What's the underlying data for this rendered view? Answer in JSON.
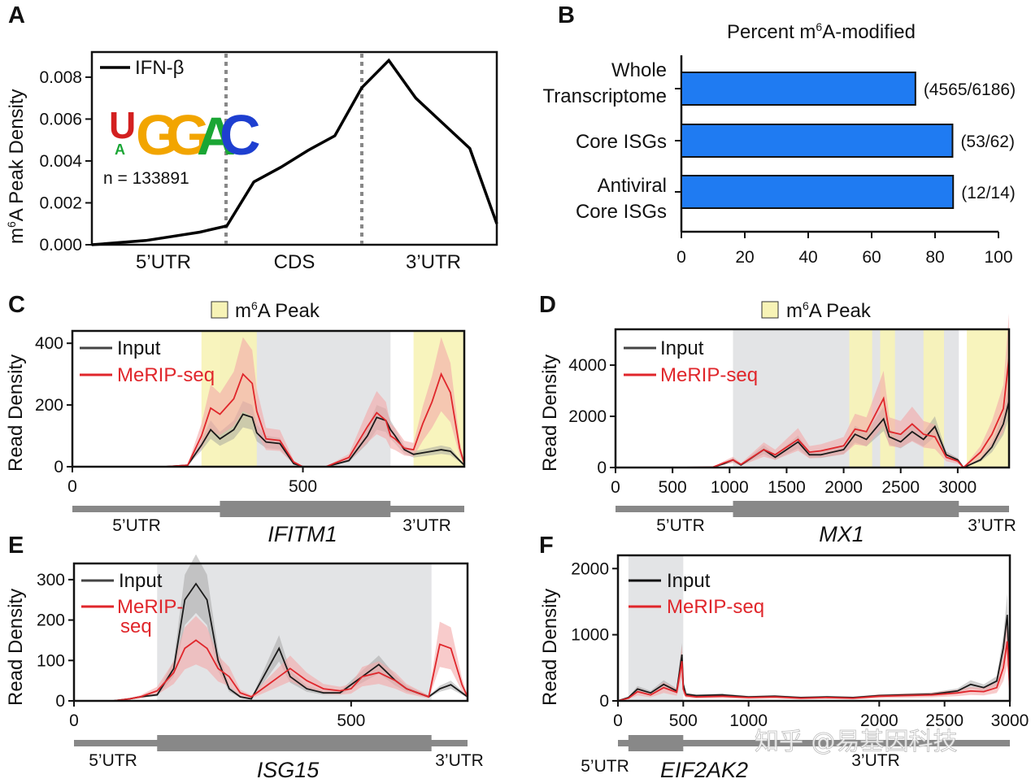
{
  "panels": {
    "A": "A",
    "B": "B",
    "C": "C",
    "D": "D",
    "E": "E",
    "F": "F"
  },
  "colors": {
    "input": "#1a1a1a",
    "merip": "#e0262b",
    "merip_band": "#f4a8a8",
    "input_band": "#9a9a9a",
    "cds_shade": "#e3e4e6",
    "peak_shade": "#f7f3b6",
    "bar": "#1f7bf2",
    "gene_track": "#888888"
  },
  "watermark": "知乎 @易基因科技",
  "chart_data": [
    {
      "panel": "A",
      "type": "line",
      "ylabel_main": "A Peak Density",
      "ylabel_prefix": "m",
      "ylabel_sup": "6",
      "legend": "IFN-β",
      "motif": [
        "U",
        "G",
        "G",
        "A",
        "C"
      ],
      "motif_sub": "A",
      "n_label": "n = 133891",
      "regions": [
        "5’UTR",
        "CDS",
        "3’UTR"
      ],
      "yticks": [
        "0.000",
        "0.002",
        "0.004",
        "0.006",
        "0.008"
      ],
      "ylim": [
        0,
        0.0092
      ],
      "x": [
        0,
        0.2,
        0.4,
        0.6,
        0.8,
        1.0,
        1.2,
        1.4,
        1.6,
        1.8,
        2.0,
        2.2,
        2.4,
        2.6,
        2.8,
        3.0
      ],
      "y": [
        0.0,
        0.0001,
        0.0002,
        0.0004,
        0.0006,
        0.0009,
        0.003,
        0.0037,
        0.0045,
        0.0052,
        0.0075,
        0.0088,
        0.007,
        0.0058,
        0.0046,
        0.001
      ]
    },
    {
      "panel": "B",
      "type": "bar",
      "title_prefix": "Percent m",
      "title_sup": "6",
      "title_suffix": "A-modified",
      "categories": [
        [
          "Whole",
          "Transcriptome"
        ],
        [
          "Core ISGs"
        ],
        [
          "Antiviral",
          "Core ISGs"
        ]
      ],
      "values": [
        73.8,
        85.5,
        85.7
      ],
      "annotations": [
        "(4565/6186)",
        "(53/62)",
        "(12/14)"
      ],
      "xticks": [
        "0",
        "20",
        "40",
        "60",
        "80",
        "100"
      ],
      "xlim": [
        0,
        100
      ]
    },
    {
      "panel": "C",
      "type": "line",
      "gene": "IFITM1",
      "ylabel": "Read Density",
      "utr5": "5’UTR",
      "utr3": "3’UTR",
      "legend_input": "Input",
      "legend_merip": "MeRIP-seq",
      "peak_legend_prefix": "m",
      "peak_legend_sup": "6",
      "peak_legend_suffix": "A Peak",
      "xticks": [
        "0",
        "500"
      ],
      "yticks": [
        "0",
        "200",
        "400"
      ],
      "xlim": [
        0,
        850
      ],
      "ylim": [
        0,
        440
      ],
      "cds": [
        320,
        690
      ],
      "peaks": [
        [
          280,
          400
        ],
        [
          740,
          850
        ]
      ],
      "x": [
        0,
        50,
        100,
        150,
        200,
        250,
        280,
        300,
        320,
        350,
        370,
        390,
        400,
        420,
        450,
        480,
        500,
        550,
        600,
        640,
        660,
        680,
        690,
        700,
        720,
        740,
        760,
        780,
        800,
        820,
        840,
        850
      ],
      "input": [
        0,
        0,
        0,
        0,
        0,
        5,
        70,
        120,
        90,
        120,
        170,
        160,
        110,
        80,
        75,
        10,
        0,
        0,
        20,
        100,
        160,
        150,
        120,
        100,
        55,
        40,
        45,
        50,
        55,
        50,
        20,
        5
      ],
      "merip": [
        0,
        0,
        0,
        0,
        0,
        5,
        100,
        190,
        170,
        220,
        300,
        270,
        180,
        90,
        85,
        15,
        0,
        0,
        30,
        130,
        175,
        150,
        100,
        90,
        60,
        55,
        140,
        210,
        300,
        240,
        60,
        10
      ]
    },
    {
      "panel": "D",
      "type": "line",
      "gene": "MX1",
      "ylabel": "Read Density",
      "utr5": "5’UTR",
      "utr3": "3’UTR",
      "legend_input": "Input",
      "legend_merip": "MeRIP-seq",
      "peak_legend_prefix": "m",
      "peak_legend_sup": "6",
      "peak_legend_suffix": "A Peak",
      "xticks": [
        "0",
        "500",
        "1000",
        "1500",
        "2000",
        "2500",
        "3000"
      ],
      "yticks": [
        "0",
        "2000",
        "4000"
      ],
      "xlim": [
        0,
        3450
      ],
      "ylim": [
        0,
        5400
      ],
      "cds": [
        1030,
        3010
      ],
      "peaks": [
        [
          2050,
          2250
        ],
        [
          2320,
          2450
        ],
        [
          2700,
          2880
        ],
        [
          3080,
          3450
        ]
      ],
      "x": [
        0,
        500,
        850,
        950,
        1030,
        1100,
        1300,
        1400,
        1600,
        1700,
        1800,
        2000,
        2100,
        2200,
        2350,
        2400,
        2500,
        2600,
        2700,
        2800,
        2900,
        3000,
        3050,
        3100,
        3200,
        3300,
        3400,
        3450
      ],
      "input": [
        0,
        0,
        10,
        150,
        300,
        100,
        700,
        400,
        1000,
        500,
        500,
        700,
        1300,
        1100,
        1900,
        1200,
        1000,
        1400,
        1100,
        1600,
        500,
        300,
        0,
        100,
        300,
        800,
        1700,
        2600
      ],
      "merip": [
        0,
        0,
        10,
        180,
        300,
        120,
        700,
        500,
        1100,
        600,
        650,
        850,
        1500,
        1400,
        2700,
        1400,
        1300,
        1700,
        1300,
        1200,
        400,
        250,
        0,
        200,
        600,
        1300,
        2300,
        4300
      ]
    },
    {
      "panel": "E",
      "type": "line",
      "gene": "ISG15",
      "ylabel": "Read Density",
      "utr5": "5’UTR",
      "utr3": "3’UTR",
      "legend_input": "Input",
      "legend_merip_1": "MeRIP-",
      "legend_merip_2": "seq",
      "xticks": [
        "0",
        "500"
      ],
      "yticks": [
        "0",
        "100",
        "200",
        "300"
      ],
      "xlim": [
        0,
        710
      ],
      "ylim": [
        0,
        340
      ],
      "cds": [
        150,
        645
      ],
      "x": [
        0,
        70,
        100,
        120,
        150,
        180,
        200,
        220,
        240,
        260,
        280,
        300,
        320,
        350,
        370,
        390,
        420,
        450,
        480,
        500,
        520,
        550,
        580,
        600,
        620,
        640,
        660,
        680,
        700,
        710
      ],
      "input": [
        0,
        0,
        5,
        10,
        15,
        80,
        250,
        290,
        250,
        100,
        30,
        10,
        5,
        80,
        130,
        60,
        30,
        20,
        20,
        40,
        60,
        90,
        50,
        30,
        20,
        10,
        30,
        40,
        20,
        10
      ],
      "merip": [
        0,
        0,
        5,
        10,
        25,
        70,
        130,
        150,
        130,
        80,
        60,
        20,
        10,
        40,
        60,
        80,
        50,
        30,
        25,
        30,
        60,
        70,
        50,
        30,
        20,
        10,
        140,
        130,
        40,
        10
      ]
    },
    {
      "panel": "F",
      "type": "line",
      "gene": "EIF2AK2",
      "ylabel": "Read Density",
      "utr5": "5’UTR",
      "utr3": "3’UTR",
      "legend_input": "Input",
      "legend_merip": "MeRIP-seq",
      "xticks": [
        "0",
        "500",
        "1000",
        "2000",
        "2500",
        "3000"
      ],
      "xtick_values": [
        0,
        500,
        1000,
        2000,
        2500,
        3000
      ],
      "yticks": [
        "0",
        "1000",
        "2000"
      ],
      "xlim": [
        0,
        3000
      ],
      "ylim": [
        0,
        2200
      ],
      "cds": [
        80,
        500
      ],
      "x": [
        0,
        80,
        150,
        250,
        350,
        450,
        490,
        500,
        520,
        600,
        800,
        1000,
        1200,
        1400,
        1600,
        1800,
        2000,
        2200,
        2400,
        2600,
        2700,
        2800,
        2900,
        2950,
        2980,
        3000
      ],
      "input": [
        0,
        50,
        180,
        120,
        250,
        150,
        700,
        250,
        100,
        80,
        90,
        60,
        70,
        50,
        60,
        50,
        80,
        90,
        100,
        150,
        250,
        200,
        300,
        800,
        1300,
        200
      ],
      "merip": [
        0,
        40,
        140,
        90,
        200,
        130,
        600,
        180,
        80,
        60,
        70,
        50,
        60,
        40,
        50,
        40,
        70,
        80,
        90,
        120,
        150,
        140,
        200,
        500,
        900,
        150
      ]
    }
  ]
}
